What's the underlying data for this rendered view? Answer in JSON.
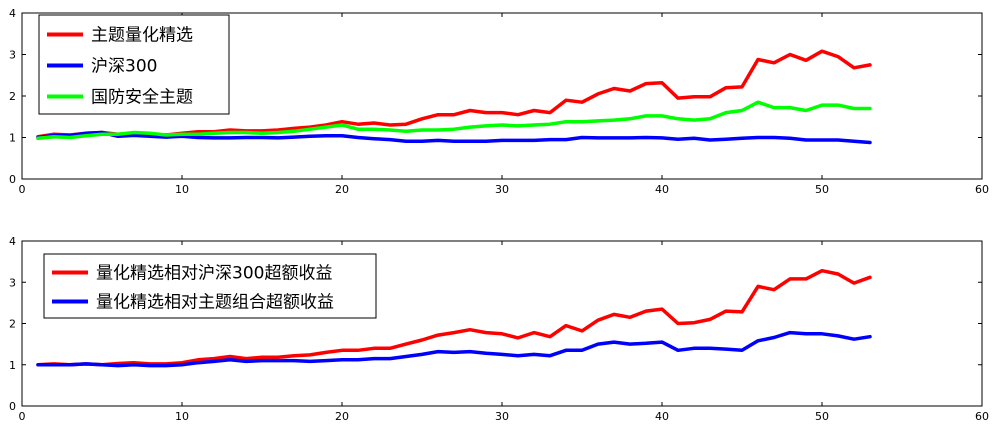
{
  "chart_data": [
    {
      "type": "line",
      "title": "",
      "xlabel": "",
      "ylabel": "",
      "xlim": [
        0,
        60
      ],
      "ylim": [
        0,
        4
      ],
      "xticks": [
        0,
        10,
        20,
        30,
        40,
        50,
        60
      ],
      "yticks": [
        0,
        1,
        2,
        3,
        4
      ],
      "grid": false,
      "legend_position": "top-left",
      "series": [
        {
          "name": "主题量化精选",
          "color": "#ff0000",
          "x": [
            1,
            2,
            3,
            4,
            5,
            6,
            7,
            8,
            9,
            10,
            11,
            12,
            13,
            14,
            15,
            16,
            17,
            18,
            19,
            20,
            21,
            22,
            23,
            24,
            25,
            26,
            27,
            28,
            29,
            30,
            31,
            32,
            33,
            34,
            35,
            36,
            37,
            38,
            39,
            40,
            41,
            42,
            43,
            44,
            45,
            46,
            47,
            48,
            49,
            50,
            51,
            52,
            53
          ],
          "values": [
            1.02,
            1.08,
            1.06,
            1.1,
            1.12,
            1.08,
            1.1,
            1.08,
            1.06,
            1.1,
            1.14,
            1.14,
            1.18,
            1.16,
            1.16,
            1.18,
            1.22,
            1.25,
            1.3,
            1.38,
            1.32,
            1.35,
            1.3,
            1.32,
            1.45,
            1.55,
            1.55,
            1.65,
            1.6,
            1.6,
            1.55,
            1.65,
            1.6,
            1.9,
            1.85,
            2.05,
            2.18,
            2.12,
            2.3,
            2.32,
            1.95,
            1.98,
            1.98,
            2.2,
            2.22,
            2.88,
            2.8,
            3.0,
            2.86,
            3.08,
            2.95,
            2.68,
            2.75
          ]
        },
        {
          "name": "沪深300",
          "color": "#0000ff",
          "x": [
            1,
            2,
            3,
            4,
            5,
            6,
            7,
            8,
            9,
            10,
            11,
            12,
            13,
            14,
            15,
            16,
            17,
            18,
            19,
            20,
            21,
            22,
            23,
            24,
            25,
            26,
            27,
            28,
            29,
            30,
            31,
            32,
            33,
            34,
            35,
            36,
            37,
            38,
            39,
            40,
            41,
            42,
            43,
            44,
            45,
            46,
            47,
            48,
            49,
            50,
            51,
            52,
            53
          ],
          "values": [
            1.0,
            1.05,
            1.05,
            1.1,
            1.12,
            1.03,
            1.05,
            1.03,
            1.01,
            1.03,
            1.0,
            0.99,
            0.99,
            1.0,
            1.0,
            0.99,
            1.01,
            1.03,
            1.04,
            1.04,
            1.0,
            0.97,
            0.95,
            0.91,
            0.91,
            0.93,
            0.91,
            0.91,
            0.91,
            0.93,
            0.93,
            0.93,
            0.95,
            0.95,
            1.0,
            0.99,
            0.99,
            0.99,
            1.0,
            0.99,
            0.96,
            0.98,
            0.94,
            0.96,
            0.98,
            1.0,
            1.0,
            0.98,
            0.94,
            0.94,
            0.94,
            0.91,
            0.88
          ]
        },
        {
          "name": "国防安全主题",
          "color": "#00ff00",
          "x": [
            1,
            2,
            3,
            4,
            5,
            6,
            7,
            8,
            9,
            10,
            11,
            12,
            13,
            14,
            15,
            16,
            17,
            18,
            19,
            20,
            21,
            22,
            23,
            24,
            25,
            26,
            27,
            28,
            29,
            30,
            31,
            32,
            33,
            34,
            35,
            36,
            37,
            38,
            39,
            40,
            41,
            42,
            43,
            44,
            45,
            46,
            47,
            48,
            49,
            50,
            51,
            52,
            53
          ],
          "values": [
            0.98,
            1.02,
            1.0,
            1.04,
            1.08,
            1.08,
            1.12,
            1.1,
            1.06,
            1.08,
            1.08,
            1.1,
            1.12,
            1.12,
            1.1,
            1.12,
            1.15,
            1.2,
            1.25,
            1.3,
            1.2,
            1.2,
            1.18,
            1.15,
            1.18,
            1.18,
            1.2,
            1.25,
            1.28,
            1.3,
            1.28,
            1.3,
            1.32,
            1.38,
            1.38,
            1.4,
            1.42,
            1.45,
            1.52,
            1.52,
            1.45,
            1.42,
            1.45,
            1.6,
            1.65,
            1.85,
            1.72,
            1.72,
            1.65,
            1.78,
            1.78,
            1.7,
            1.7
          ]
        }
      ]
    },
    {
      "type": "line",
      "title": "",
      "xlabel": "",
      "ylabel": "",
      "xlim": [
        0,
        60
      ],
      "ylim": [
        0,
        4
      ],
      "xticks": [
        0,
        10,
        20,
        30,
        40,
        50,
        60
      ],
      "yticks": [
        0,
        1,
        2,
        3,
        4
      ],
      "grid": false,
      "legend_position": "top-left",
      "series": [
        {
          "name": "量化精选相对沪深300超额收益",
          "color": "#ff0000",
          "x": [
            1,
            2,
            3,
            4,
            5,
            6,
            7,
            8,
            9,
            10,
            11,
            12,
            13,
            14,
            15,
            16,
            17,
            18,
            19,
            20,
            21,
            22,
            23,
            24,
            25,
            26,
            27,
            28,
            29,
            30,
            31,
            32,
            33,
            34,
            35,
            36,
            37,
            38,
            39,
            40,
            41,
            42,
            43,
            44,
            45,
            46,
            47,
            48,
            49,
            50,
            51,
            52,
            53
          ],
          "values": [
            1.0,
            1.02,
            1.0,
            1.02,
            1.0,
            1.03,
            1.05,
            1.02,
            1.02,
            1.05,
            1.12,
            1.15,
            1.2,
            1.15,
            1.18,
            1.18,
            1.22,
            1.24,
            1.3,
            1.35,
            1.35,
            1.4,
            1.4,
            1.5,
            1.6,
            1.72,
            1.78,
            1.85,
            1.78,
            1.75,
            1.65,
            1.78,
            1.68,
            1.95,
            1.82,
            2.08,
            2.22,
            2.15,
            2.3,
            2.35,
            2.0,
            2.02,
            2.1,
            2.3,
            2.28,
            2.9,
            2.82,
            3.08,
            3.08,
            3.28,
            3.2,
            2.98,
            3.12
          ]
        },
        {
          "name": "量化精选相对主题组合超额收益",
          "color": "#0000ff",
          "x": [
            1,
            2,
            3,
            4,
            5,
            6,
            7,
            8,
            9,
            10,
            11,
            12,
            13,
            14,
            15,
            16,
            17,
            18,
            19,
            20,
            21,
            22,
            23,
            24,
            25,
            26,
            27,
            28,
            29,
            30,
            31,
            32,
            33,
            34,
            35,
            36,
            37,
            38,
            39,
            40,
            41,
            42,
            43,
            44,
            45,
            46,
            47,
            48,
            49,
            50,
            51,
            52,
            53
          ],
          "values": [
            1.0,
            1.0,
            1.0,
            1.02,
            1.0,
            0.98,
            1.0,
            0.98,
            0.98,
            1.0,
            1.05,
            1.08,
            1.12,
            1.08,
            1.1,
            1.1,
            1.1,
            1.08,
            1.1,
            1.12,
            1.12,
            1.15,
            1.15,
            1.2,
            1.25,
            1.32,
            1.3,
            1.32,
            1.28,
            1.25,
            1.22,
            1.25,
            1.22,
            1.35,
            1.35,
            1.5,
            1.55,
            1.5,
            1.52,
            1.55,
            1.35,
            1.4,
            1.4,
            1.38,
            1.35,
            1.58,
            1.66,
            1.78,
            1.75,
            1.75,
            1.7,
            1.62,
            1.68
          ]
        }
      ]
    }
  ]
}
